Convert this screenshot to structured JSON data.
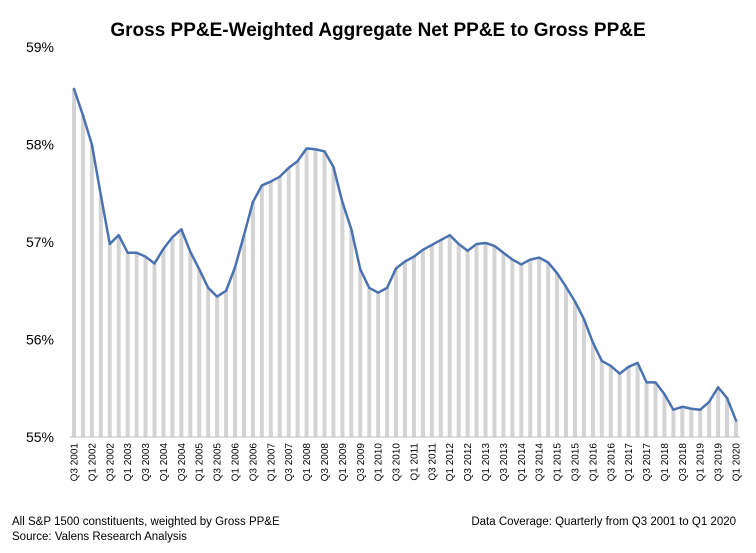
{
  "chart_data": {
    "type": "line",
    "title": "Gross PP&E-Weighted Aggregate Net PP&E to Gross PP&E",
    "xlabel": "",
    "ylabel": "",
    "ylim": [
      55,
      59
    ],
    "yticks": [
      "55%",
      "56%",
      "57%",
      "58%",
      "59%"
    ],
    "grid": false,
    "background_bars": true,
    "line_color": "#4a72b0",
    "bar_color": "#d4d4d4",
    "x": [
      "Q3 2001",
      "Q4 2001",
      "Q1 2002",
      "Q2 2002",
      "Q3 2002",
      "Q4 2002",
      "Q1 2003",
      "Q2 2003",
      "Q3 2003",
      "Q4 2003",
      "Q1 2004",
      "Q2 2004",
      "Q3 2004",
      "Q4 2004",
      "Q1 2005",
      "Q2 2005",
      "Q3 2005",
      "Q4 2005",
      "Q1 2006",
      "Q2 2006",
      "Q3 2006",
      "Q4 2006",
      "Q1 2007",
      "Q2 2007",
      "Q3 2007",
      "Q4 2007",
      "Q1 2008",
      "Q2 2008",
      "Q3 2008",
      "Q4 2008",
      "Q1 2009",
      "Q2 2009",
      "Q3 2009",
      "Q4 2009",
      "Q1 2010",
      "Q2 2010",
      "Q3 2010",
      "Q4 2010",
      "Q1 2011",
      "Q2 2011",
      "Q3 2011",
      "Q4 2011",
      "Q1 2012",
      "Q2 2012",
      "Q3 2012",
      "Q4 2012",
      "Q1 2013",
      "Q2 2013",
      "Q3 2013",
      "Q4 2013",
      "Q1 2014",
      "Q2 2014",
      "Q3 2014",
      "Q4 2014",
      "Q1 2015",
      "Q2 2015",
      "Q3 2015",
      "Q4 2015",
      "Q1 2016",
      "Q2 2016",
      "Q3 2016",
      "Q4 2016",
      "Q1 2017",
      "Q2 2017",
      "Q3 2017",
      "Q4 2017",
      "Q1 2018",
      "Q2 2018",
      "Q3 2018",
      "Q4 2018",
      "Q1 2019",
      "Q2 2019",
      "Q3 2019",
      "Q4 2019",
      "Q1 2020"
    ],
    "x_tick_labels": [
      "Q3 2001",
      "Q1 2002",
      "Q3 2002",
      "Q1 2003",
      "Q3 2003",
      "Q1 2004",
      "Q3 2004",
      "Q1 2005",
      "Q3 2005",
      "Q1 2006",
      "Q3 2006",
      "Q1 2007",
      "Q3 2007",
      "Q1 2008",
      "Q3 2008",
      "Q1 2009",
      "Q3 2009",
      "Q1 2010",
      "Q3 2010",
      "Q1 2011",
      "Q3 2011",
      "Q1 2012",
      "Q3 2012",
      "Q1 2013",
      "Q3 2013",
      "Q1 2014",
      "Q3 2014",
      "Q1 2015",
      "Q3 2015",
      "Q1 2016",
      "Q3 2016",
      "Q1 2017",
      "Q3 2017",
      "Q1 2018",
      "Q3 2018",
      "Q1 2019",
      "Q3 2019",
      "Q1 2020"
    ],
    "series": [
      {
        "name": "",
        "values": [
          58.57,
          58.3,
          58.0,
          57.48,
          56.98,
          57.07,
          56.89,
          56.89,
          56.85,
          56.78,
          56.93,
          57.05,
          57.13,
          56.9,
          56.72,
          56.53,
          56.44,
          56.5,
          56.74,
          57.07,
          57.41,
          57.58,
          57.62,
          57.67,
          57.76,
          57.83,
          57.96,
          57.95,
          57.93,
          57.77,
          57.41,
          57.13,
          56.72,
          56.53,
          56.48,
          56.53,
          56.73,
          56.8,
          56.85,
          56.92,
          56.97,
          57.02,
          57.07,
          56.98,
          56.91,
          56.98,
          56.99,
          56.96,
          56.89,
          56.82,
          56.77,
          56.82,
          56.84,
          56.79,
          56.68,
          56.54,
          56.39,
          56.21,
          55.97,
          55.78,
          55.73,
          55.65,
          55.72,
          55.76,
          55.56,
          55.56,
          55.44,
          55.28,
          55.31,
          55.29,
          55.28,
          55.36,
          55.51,
          55.4,
          55.17
        ]
      }
    ]
  },
  "footer": {
    "note_line1": "All S&P 1500 constituents, weighted by Gross PP&E",
    "note_line2": "Source: Valens Research Analysis",
    "coverage": "Data Coverage:  Quarterly from Q3 2001 to Q1 2020"
  }
}
